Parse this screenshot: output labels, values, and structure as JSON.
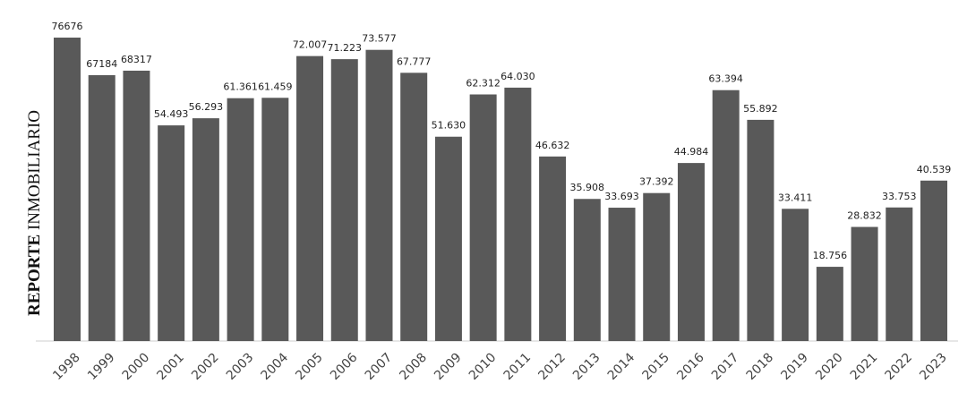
{
  "chart_data": {
    "type": "bar",
    "y_label": [
      "REPORTE",
      "INMOBILIARIO"
    ],
    "categories": [
      "1998",
      "1999",
      "2000",
      "2001",
      "2002",
      "2003",
      "2004",
      "2005",
      "2006",
      "2007",
      "2008",
      "2009",
      "2010",
      "2011",
      "2012",
      "2013",
      "2014",
      "2015",
      "2016",
      "2017",
      "2018",
      "2019",
      "2020",
      "2021",
      "2022",
      "2023"
    ],
    "values": [
      76676,
      67184,
      68317,
      54493,
      56293,
      61361,
      61459,
      72007,
      71223,
      73577,
      67777,
      51630,
      62312,
      64030,
      46632,
      35908,
      33693,
      37392,
      44984,
      63394,
      55892,
      33411,
      18756,
      28832,
      33753,
      40539
    ],
    "value_labels": [
      "76676",
      "67184",
      "68317",
      "54.493",
      "56.293",
      "61.361",
      "61.459",
      "72.007",
      "71.223",
      "73.577",
      "67.777",
      "51.630",
      "62.312",
      "64.030",
      "46.632",
      "35.908",
      "33.693",
      "37.392",
      "44.984",
      "63.394",
      "55.892",
      "33.411",
      "18.756",
      "28.832",
      "33.753",
      "40.539"
    ],
    "color": "#595959"
  }
}
